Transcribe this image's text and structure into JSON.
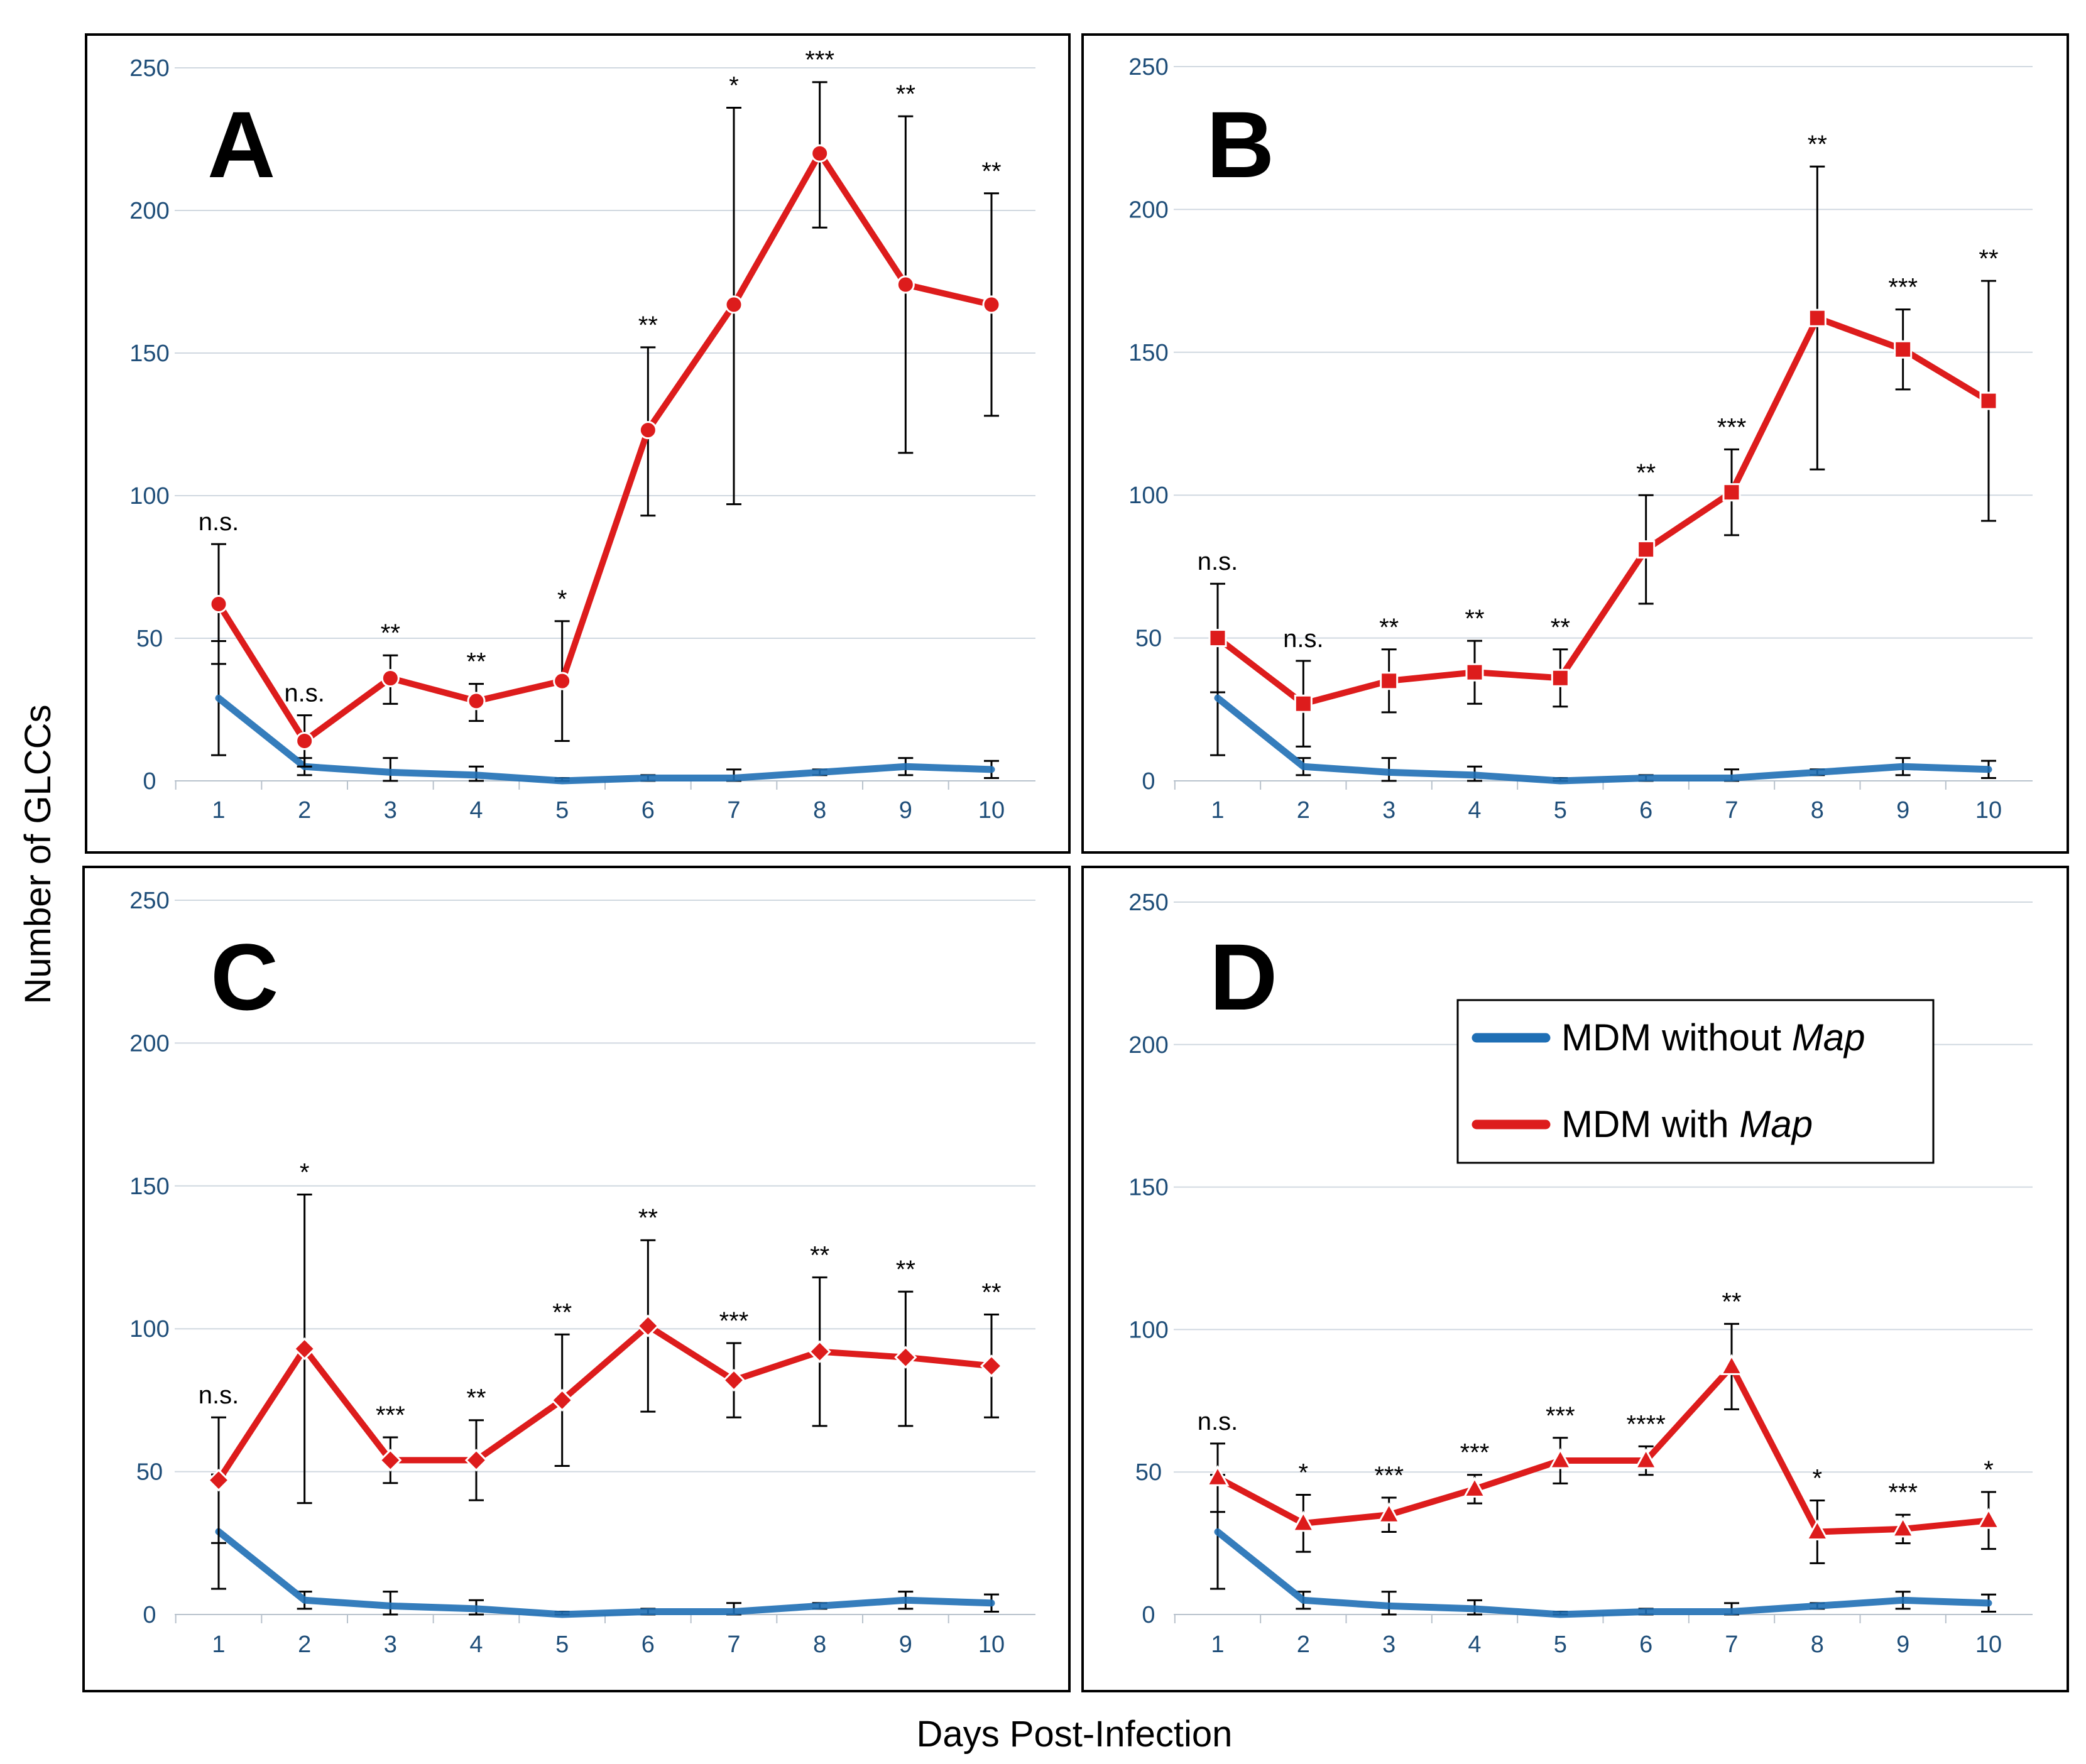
{
  "figure": {
    "ylabel": "Number of GLCCs",
    "xlabel": "Days Post-Infection",
    "colors": {
      "blue": "#1f6fb5",
      "red": "#dd1c1c",
      "grid": "#d0d8e0",
      "tick": "#1f4e79"
    }
  },
  "legend": {
    "items": [
      {
        "prefix": "MDM without ",
        "italic": "Map",
        "color": "#1f6fb5"
      },
      {
        "prefix": "MDM with ",
        "italic": "Map",
        "color": "#dd1c1c"
      }
    ]
  },
  "chart_data": [
    {
      "panel": "A",
      "type": "line",
      "marker": "circle",
      "categories": [
        "1",
        "2",
        "3",
        "4",
        "5",
        "6",
        "7",
        "8",
        "9",
        "10"
      ],
      "ylim": [
        0,
        250
      ],
      "yticks": [
        0,
        50,
        100,
        150,
        200,
        250
      ],
      "series": [
        {
          "name": "MDM without Map",
          "color": "#1f6fb5",
          "values": [
            29,
            5,
            3,
            2,
            0,
            1,
            1,
            3,
            5,
            4
          ],
          "err_low": [
            20,
            3,
            3,
            3,
            1,
            1,
            2,
            1,
            3,
            3
          ],
          "err_high": [
            20,
            3,
            5,
            3,
            1,
            1,
            3,
            1,
            3,
            3
          ]
        },
        {
          "name": "MDM with Map",
          "color": "#dd1c1c",
          "values": [
            62,
            14,
            36,
            28,
            35,
            123,
            167,
            220,
            174,
            167
          ],
          "err_low": [
            21,
            9,
            9,
            7,
            21,
            30,
            70,
            26,
            59,
            39
          ],
          "err_high": [
            21,
            9,
            8,
            6,
            21,
            29,
            69,
            25,
            59,
            39
          ]
        }
      ],
      "significance": [
        "n.s.",
        "n.s.",
        "**",
        "**",
        "*",
        "**",
        "*",
        "***",
        "**",
        "**"
      ]
    },
    {
      "panel": "B",
      "type": "line",
      "marker": "square",
      "categories": [
        "1",
        "2",
        "3",
        "4",
        "5",
        "6",
        "7",
        "8",
        "9",
        "10"
      ],
      "ylim": [
        0,
        250
      ],
      "yticks": [
        0,
        50,
        100,
        150,
        200,
        250
      ],
      "series": [
        {
          "name": "MDM without Map",
          "color": "#1f6fb5",
          "values": [
            29,
            5,
            3,
            2,
            0,
            1,
            1,
            3,
            5,
            4
          ],
          "err_low": [
            20,
            3,
            3,
            3,
            1,
            1,
            2,
            1,
            3,
            3
          ],
          "err_high": [
            20,
            3,
            5,
            3,
            1,
            1,
            3,
            1,
            3,
            3
          ]
        },
        {
          "name": "MDM with Map",
          "color": "#dd1c1c",
          "values": [
            50,
            27,
            35,
            38,
            36,
            81,
            101,
            162,
            151,
            133
          ],
          "err_low": [
            19,
            15,
            11,
            11,
            10,
            19,
            15,
            53,
            14,
            42
          ],
          "err_high": [
            19,
            15,
            11,
            11,
            10,
            19,
            15,
            53,
            14,
            42
          ]
        }
      ],
      "significance": [
        "n.s.",
        "n.s.",
        "**",
        "**",
        "**",
        "**",
        "***",
        "**",
        "***",
        "**"
      ]
    },
    {
      "panel": "C",
      "type": "line",
      "marker": "diamond",
      "categories": [
        "1",
        "2",
        "3",
        "4",
        "5",
        "6",
        "7",
        "8",
        "9",
        "10"
      ],
      "ylim": [
        0,
        250
      ],
      "yticks": [
        0,
        50,
        100,
        150,
        200,
        250
      ],
      "series": [
        {
          "name": "MDM without Map",
          "color": "#1f6fb5",
          "values": [
            29,
            5,
            3,
            2,
            0,
            1,
            1,
            3,
            5,
            4
          ],
          "err_low": [
            20,
            3,
            3,
            3,
            1,
            1,
            2,
            1,
            3,
            3
          ],
          "err_high": [
            20,
            3,
            5,
            3,
            1,
            1,
            3,
            1,
            3,
            3
          ]
        },
        {
          "name": "MDM with Map",
          "color": "#dd1c1c",
          "values": [
            47,
            93,
            54,
            54,
            75,
            101,
            82,
            92,
            90,
            87
          ],
          "err_low": [
            22,
            54,
            8,
            14,
            23,
            30,
            13,
            26,
            24,
            18
          ],
          "err_high": [
            22,
            54,
            8,
            14,
            23,
            30,
            13,
            26,
            23,
            18
          ]
        }
      ],
      "significance": [
        "n.s.",
        "*",
        "***",
        "**",
        "**",
        "**",
        "***",
        "**",
        "**",
        "**"
      ]
    },
    {
      "panel": "D",
      "type": "line",
      "marker": "triangle",
      "categories": [
        "1",
        "2",
        "3",
        "4",
        "5",
        "6",
        "7",
        "8",
        "9",
        "10"
      ],
      "ylim": [
        0,
        250
      ],
      "yticks": [
        0,
        50,
        100,
        150,
        200,
        250
      ],
      "series": [
        {
          "name": "MDM without Map",
          "color": "#1f6fb5",
          "values": [
            29,
            5,
            3,
            2,
            0,
            1,
            1,
            3,
            5,
            4
          ],
          "err_low": [
            20,
            3,
            3,
            3,
            1,
            1,
            2,
            1,
            3,
            3
          ],
          "err_high": [
            20,
            3,
            5,
            3,
            1,
            1,
            3,
            1,
            3,
            3
          ]
        },
        {
          "name": "MDM with Map",
          "color": "#dd1c1c",
          "values": [
            48,
            32,
            35,
            44,
            54,
            54,
            87,
            29,
            30,
            33
          ],
          "err_low": [
            12,
            10,
            6,
            5,
            8,
            5,
            15,
            11,
            5,
            10
          ],
          "err_high": [
            12,
            10,
            6,
            5,
            8,
            5,
            15,
            11,
            5,
            10
          ]
        }
      ],
      "significance": [
        "n.s.",
        "*",
        "***",
        "***",
        "***",
        "****",
        "**",
        "*",
        "***",
        "*"
      ]
    }
  ]
}
